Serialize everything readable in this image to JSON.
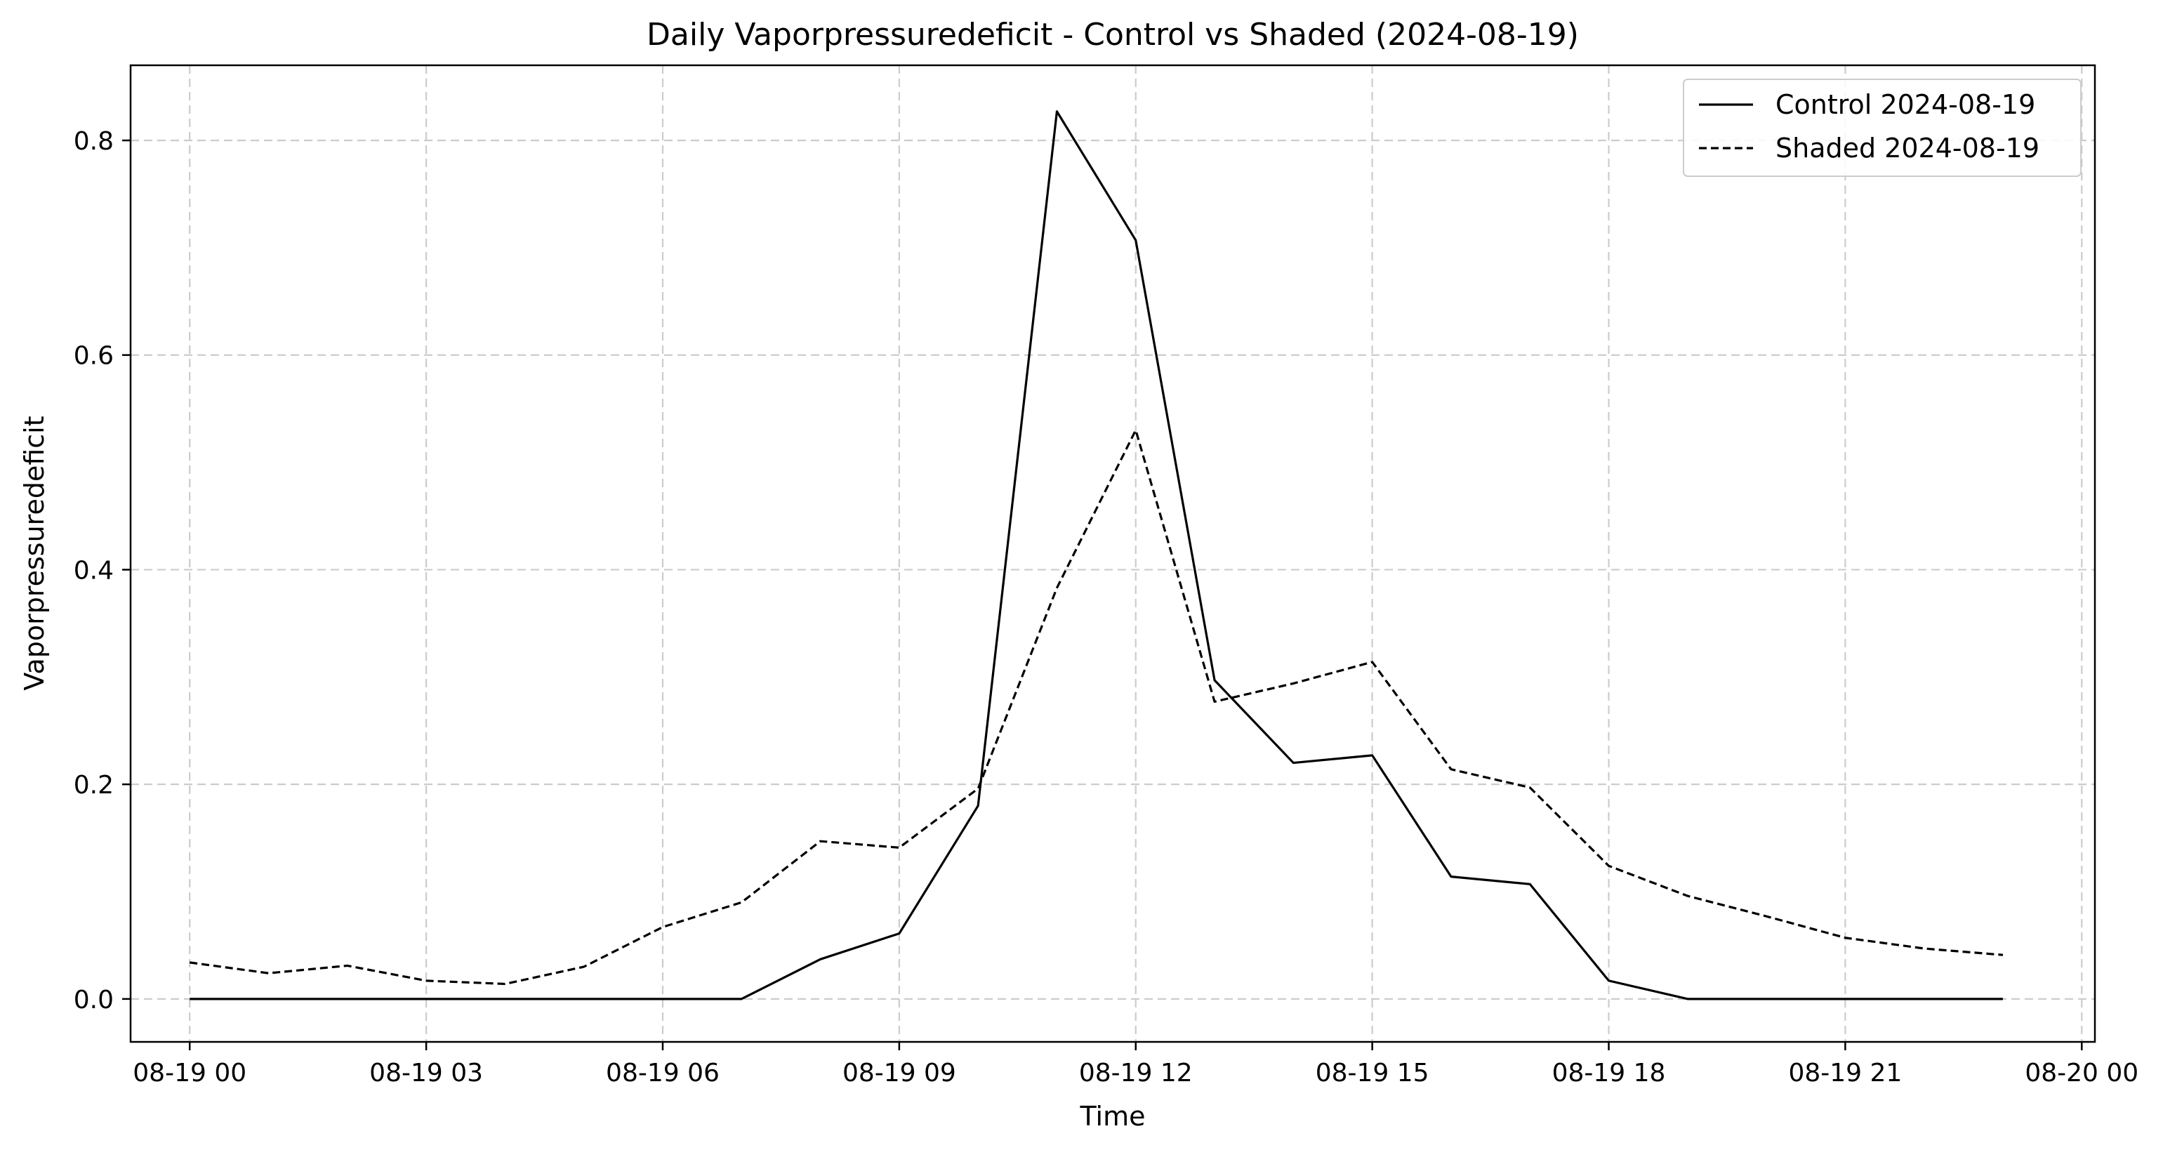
{
  "chart_data": {
    "type": "line",
    "title": "Daily Vaporpressuredeficit - Control vs Shaded (2024-08-19)",
    "xlabel": "Time",
    "ylabel": "Vaporpressuredeficit",
    "xlim": [
      "2024-08-18 23:15",
      "2024-08-20 00:10"
    ],
    "ylim": [
      -0.04,
      0.87
    ],
    "grid": true,
    "legend_position": "top-right",
    "xticks": [
      {
        "value": "2024-08-19 00:00",
        "label": "08-19 00"
      },
      {
        "value": "2024-08-19 03:00",
        "label": "08-19 03"
      },
      {
        "value": "2024-08-19 06:00",
        "label": "08-19 06"
      },
      {
        "value": "2024-08-19 09:00",
        "label": "08-19 09"
      },
      {
        "value": "2024-08-19 12:00",
        "label": "08-19 12"
      },
      {
        "value": "2024-08-19 15:00",
        "label": "08-19 15"
      },
      {
        "value": "2024-08-19 18:00",
        "label": "08-19 18"
      },
      {
        "value": "2024-08-19 21:00",
        "label": "08-19 21"
      },
      {
        "value": "2024-08-20 00:00",
        "label": "08-20 00"
      }
    ],
    "yticks": [
      {
        "value": 0.0,
        "label": "0.0"
      },
      {
        "value": 0.2,
        "label": "0.2"
      },
      {
        "value": 0.4,
        "label": "0.4"
      },
      {
        "value": 0.6,
        "label": "0.6"
      },
      {
        "value": 0.8,
        "label": "0.8"
      }
    ],
    "x": [
      "2024-08-19 00:00",
      "2024-08-19 01:00",
      "2024-08-19 02:00",
      "2024-08-19 03:00",
      "2024-08-19 04:00",
      "2024-08-19 05:00",
      "2024-08-19 06:00",
      "2024-08-19 07:00",
      "2024-08-19 08:00",
      "2024-08-19 09:00",
      "2024-08-19 10:00",
      "2024-08-19 11:00",
      "2024-08-19 12:00",
      "2024-08-19 13:00",
      "2024-08-19 14:00",
      "2024-08-19 15:00",
      "2024-08-19 16:00",
      "2024-08-19 17:00",
      "2024-08-19 18:00",
      "2024-08-19 19:00",
      "2024-08-19 20:00",
      "2024-08-19 21:00",
      "2024-08-19 22:00",
      "2024-08-19 23:00"
    ],
    "series": [
      {
        "name": "Control 2024-08-19",
        "style": "solid",
        "color": "#000000",
        "values": [
          0.0,
          0.0,
          0.0,
          0.0,
          0.0,
          0.0,
          0.0,
          0.0,
          0.037,
          0.061,
          0.18,
          0.827,
          0.707,
          0.297,
          0.22,
          0.227,
          0.114,
          0.107,
          0.017,
          0.0,
          0.0,
          0.0,
          0.0,
          0.0
        ]
      },
      {
        "name": "Shaded 2024-08-19",
        "style": "dashed",
        "color": "#000000",
        "values": [
          0.034,
          0.024,
          0.031,
          0.017,
          0.014,
          0.03,
          0.067,
          0.09,
          0.147,
          0.141,
          0.196,
          0.383,
          0.53,
          0.277,
          0.294,
          0.314,
          0.214,
          0.197,
          0.124,
          0.096,
          0.077,
          0.057,
          0.047,
          0.041
        ]
      }
    ]
  }
}
